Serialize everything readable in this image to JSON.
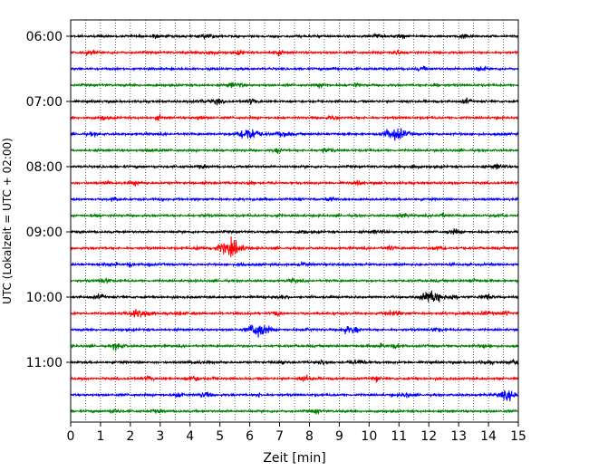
{
  "chart_data": {
    "type": "line",
    "subtype": "helicorder",
    "xlabel": "Zeit  [min]",
    "ylabel": "UTC (Lokalzeit = UTC + 02:00)",
    "xlim": [
      0,
      15
    ],
    "x_ticks": [
      "0",
      "1",
      "2",
      "3",
      "4",
      "5",
      "6",
      "7",
      "8",
      "9",
      "10",
      "11",
      "12",
      "13",
      "14",
      "15"
    ],
    "y_tick_labels": [
      "06:00",
      "07:00",
      "08:00",
      "09:00",
      "10:00",
      "11:00"
    ],
    "grid": "vertical dotted every 0.5 min",
    "legend": "none",
    "trace_colors": [
      "#000000",
      "#ff0000",
      "#0000ff",
      "#008000"
    ],
    "trace_count": 24,
    "minutes_per_trace": 15,
    "events": [
      {
        "trace": 6,
        "at_min": 6.0,
        "amplitude": 0.55
      },
      {
        "trace": 6,
        "at_min": 10.9,
        "amplitude": 0.6
      },
      {
        "trace": 13,
        "at_min": 5.4,
        "amplitude": 0.8
      },
      {
        "trace": 16,
        "at_min": 12.1,
        "amplitude": 0.55
      },
      {
        "trace": 17,
        "at_min": 2.3,
        "amplitude": 0.45
      },
      {
        "trace": 18,
        "at_min": 6.3,
        "amplitude": 0.65
      },
      {
        "trace": 22,
        "at_min": 14.7,
        "amplitude": 0.45
      }
    ]
  }
}
